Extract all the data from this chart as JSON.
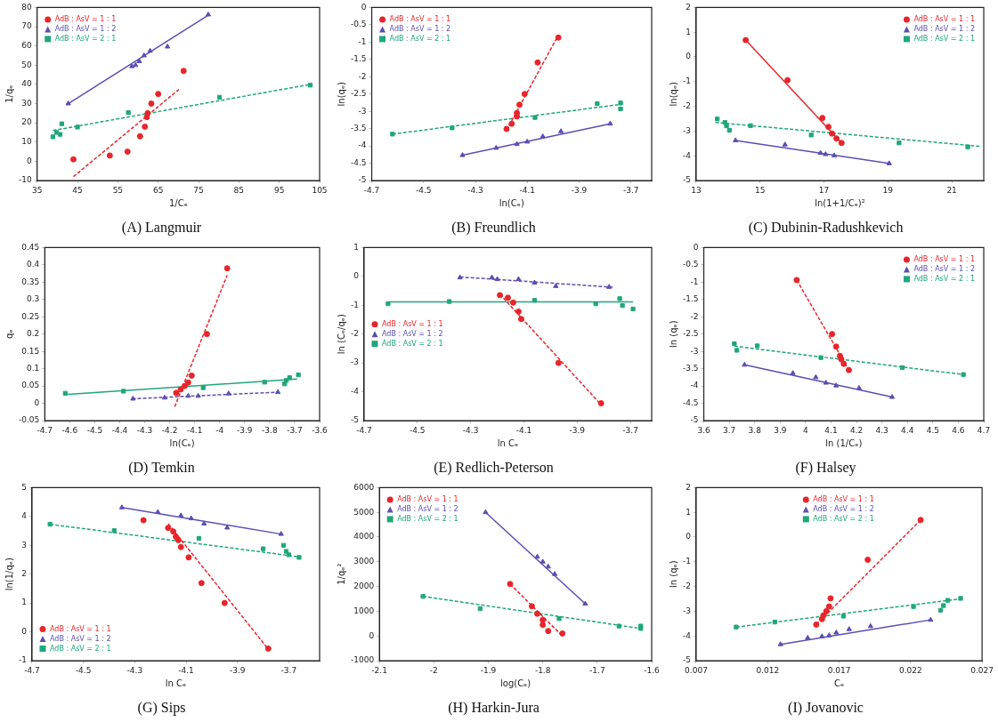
{
  "chart_data": [
    {
      "type": "scatter",
      "title": "(A) Langmuir",
      "xlabel": "1/Cₑ",
      "ylabel": "1/qₑ",
      "xlim": [
        35,
        105
      ],
      "ylim": [
        -10,
        80
      ],
      "xticks": [
        35,
        45,
        55,
        65,
        75,
        85,
        95,
        105
      ],
      "yticks": [
        -10,
        0,
        10,
        20,
        30,
        40,
        50,
        60,
        70,
        80
      ],
      "legend": "top left",
      "series": [
        {
          "name": "AdB : AsV = 1 : 1",
          "color": "#e8252b",
          "marker": "circle",
          "x": [
            44,
            53,
            57.4,
            60.5,
            61.7,
            62.2,
            62.4,
            63.3,
            65,
            71.3
          ],
          "values": [
            1,
            3,
            5,
            13,
            18,
            23,
            25,
            30,
            35,
            47
          ]
        },
        {
          "name": "AdB : AsV = 1 : 2",
          "color": "#5a4fb3",
          "marker": "triangle",
          "x": [
            42.7,
            58.5,
            59.4,
            60.3,
            61.5,
            63,
            67.3,
            77.4
          ],
          "values": [
            30,
            49.4,
            50,
            52,
            55,
            57.4,
            59.6,
            76.3
          ]
        },
        {
          "name": "AdB : AsV = 2 : 1",
          "color": "#1fa77a",
          "marker": "square",
          "x": [
            38.9,
            39.8,
            40.7,
            41.1,
            45,
            57.6,
            80.2,
            102.7
          ],
          "values": [
            12.7,
            15,
            14,
            19.5,
            17.8,
            25.3,
            33.3,
            39.6
          ]
        },
        {
          "type": "line",
          "color": "#e8252b",
          "line_style": "dashed",
          "x": [
            44,
            70.5
          ],
          "values": [
            -8,
            38
          ]
        },
        {
          "type": "line",
          "color": "#5a4fb3",
          "line_style": "solid",
          "x": [
            42.7,
            77.4
          ],
          "values": [
            30,
            76
          ]
        },
        {
          "type": "line",
          "color": "#1fa77a",
          "line_style": "dashed",
          "x": [
            38.9,
            102.7
          ],
          "values": [
            16,
            40
          ]
        }
      ]
    },
    {
      "type": "scatter",
      "title": "(B) Freundlich",
      "xlabel": "ln(Cₑ)",
      "ylabel": "ln(qₑ)",
      "xlim": [
        -4.7,
        -3.62
      ],
      "ylim": [
        -5,
        0
      ],
      "xticks": [
        -4.7,
        -4.5,
        -4.3,
        -4.1,
        -3.9,
        -3.7
      ],
      "yticks": [
        -5,
        -4.5,
        -4,
        -3.5,
        -3,
        -2.5,
        -2,
        -1.5,
        -1,
        -0.5,
        0
      ],
      "legend": "top left",
      "series": [
        {
          "name": "AdB : AsV = 1 : 1",
          "color": "#e8252b",
          "marker": "circle",
          "x": [
            -4.18,
            -4.16,
            -4.14,
            -4.14,
            -4.13,
            -4.11,
            -4.06,
            -3.98
          ],
          "values": [
            -3.51,
            -3.36,
            -3.15,
            -3.05,
            -2.81,
            -2.5,
            -1.59,
            -0.87
          ]
        },
        {
          "name": "AdB : AsV = 1 : 2",
          "color": "#5a4fb3",
          "marker": "triangle",
          "x": [
            -4.35,
            -4.22,
            -4.14,
            -4.1,
            -4.04,
            -3.97,
            -3.78
          ],
          "values": [
            -4.27,
            -4.06,
            -3.95,
            -3.88,
            -3.73,
            -3.58,
            -3.36
          ]
        },
        {
          "name": "AdB : AsV = 2 : 1",
          "color": "#1fa77a",
          "marker": "square",
          "x": [
            -4.62,
            -4.39,
            -4.07,
            -3.83,
            -3.74,
            -3.74
          ],
          "values": [
            -3.66,
            -3.48,
            -3.18,
            -2.78,
            -2.76,
            -2.93
          ]
        },
        {
          "type": "line",
          "color": "#e8252b",
          "line_style": "dashed",
          "x": [
            -4.18,
            -3.98
          ],
          "values": [
            -3.55,
            -0.8
          ]
        },
        {
          "type": "line",
          "color": "#5a4fb3",
          "line_style": "solid",
          "x": [
            -4.35,
            -3.78
          ],
          "values": [
            -4.27,
            -3.36
          ]
        },
        {
          "type": "line",
          "color": "#1fa77a",
          "line_style": "dashed",
          "x": [
            -4.62,
            -3.74
          ],
          "values": [
            -3.66,
            -2.8
          ]
        }
      ]
    },
    {
      "type": "scatter",
      "title": "(C) Dubinin-Radushkevich",
      "xlabel": "ln(1+1/Cₑ)²",
      "ylabel": "ln(qₑ)",
      "xlim": [
        13,
        22
      ],
      "ylim": [
        -5,
        2
      ],
      "xticks": [
        13,
        15,
        17,
        19,
        21
      ],
      "yticks": [
        -5,
        -4,
        -3,
        -2,
        -1,
        0,
        1,
        2
      ],
      "legend": "top right",
      "series": [
        {
          "name": "AdB : AsV = 1 : 1",
          "color": "#e8252b",
          "marker": "circle",
          "x": [
            14.55,
            15.86,
            16.95,
            17.14,
            17.25,
            17.39,
            17.55
          ],
          "values": [
            0.68,
            -0.94,
            -2.47,
            -2.83,
            -3.1,
            -3.3,
            -3.48
          ]
        },
        {
          "name": "AdB : AsV = 1 : 2",
          "color": "#5a4fb3",
          "marker": "triangle",
          "x": [
            14.23,
            15.78,
            16.89,
            17.05,
            17.32,
            19.04
          ],
          "values": [
            -3.38,
            -3.55,
            -3.89,
            -3.94,
            -3.99,
            -4.31
          ]
        },
        {
          "name": "AdB : AsV = 2 : 1",
          "color": "#1fa77a",
          "marker": "square",
          "x": [
            13.66,
            13.9,
            13.95,
            14.04,
            14.7,
            16.6,
            19.35,
            21.5
          ],
          "values": [
            -2.51,
            -2.65,
            -2.79,
            -2.97,
            -2.78,
            -3.16,
            -3.48,
            -3.64
          ]
        },
        {
          "type": "line",
          "color": "#e8252b",
          "line_style": "solid",
          "x": [
            14.55,
            17.55
          ],
          "values": [
            0.68,
            -3.48
          ]
        },
        {
          "type": "line",
          "color": "#5a4fb3",
          "line_style": "solid",
          "x": [
            14.23,
            19.04
          ],
          "values": [
            -3.38,
            -4.31
          ]
        },
        {
          "type": "line",
          "color": "#1fa77a",
          "line_style": "dashed",
          "x": [
            13.6,
            21.9
          ],
          "values": [
            -2.65,
            -3.62
          ]
        }
      ]
    },
    {
      "type": "scatter",
      "title": "(D) Temkin",
      "xlabel": "ln(Cₑ)",
      "ylabel": "qₑ",
      "xlim": [
        -4.7,
        -3.6
      ],
      "ylim": [
        -0.05,
        0.45
      ],
      "xticks": [
        -4.7,
        -4.6,
        -4.5,
        -4.4,
        -4.3,
        -4.2,
        -4.1,
        -4,
        -3.9,
        -3.8,
        -3.7,
        -3.6
      ],
      "yticks": [
        -0.05,
        0,
        0.05,
        0.1,
        0.15,
        0.2,
        0.25,
        0.3,
        0.35,
        0.4,
        0.45
      ],
      "series": [
        {
          "color": "#e8252b",
          "marker": "circle",
          "x": [
            -4.174,
            -4.156,
            -4.14,
            -4.126,
            -4.112,
            -4.051,
            -3.97
          ],
          "values": [
            0.03,
            0.04,
            0.05,
            0.06,
            0.08,
            0.2,
            0.39
          ]
        },
        {
          "color": "#5a4fb3",
          "marker": "triangle",
          "x": [
            -4.347,
            -4.22,
            -4.126,
            -4.086,
            -3.964,
            -3.767
          ],
          "values": [
            0.013,
            0.016,
            0.021,
            0.021,
            0.028,
            0.032
          ]
        },
        {
          "color": "#1fa77a",
          "marker": "square",
          "x": [
            -4.618,
            -4.385,
            -4.066,
            -3.82,
            -3.74,
            -3.733,
            -3.72,
            -3.685
          ],
          "values": [
            0.029,
            0.035,
            0.045,
            0.061,
            0.056,
            0.066,
            0.074,
            0.082
          ]
        },
        {
          "type": "line",
          "color": "#e8252b",
          "line_style": "dashed",
          "x": [
            -4.18,
            -3.97
          ],
          "values": [
            -0.01,
            0.37
          ]
        },
        {
          "type": "line",
          "color": "#5a4fb3",
          "line_style": "dashed",
          "x": [
            -4.35,
            -3.77
          ],
          "values": [
            0.013,
            0.032
          ]
        },
        {
          "type": "line",
          "color": "#1fa77a",
          "line_style": "solid",
          "x": [
            -4.62,
            -3.69
          ],
          "values": [
            0.025,
            0.07
          ]
        }
      ]
    },
    {
      "type": "scatter",
      "title": "(E) Redlich-Peterson",
      "xlabel": "ln Cₑ",
      "ylabel": "ln (Cₑ/qₑ)",
      "xlim": [
        -4.7,
        -3.62
      ],
      "ylim": [
        -5,
        1
      ],
      "xticks": [
        -4.7,
        -4.5,
        -4.3,
        -4.1,
        -3.9,
        -3.7
      ],
      "yticks": [
        -5,
        -4,
        -3,
        -2,
        -1,
        0,
        1
      ],
      "legend": "left",
      "series": [
        {
          "name": "AdB : AsV = 1 : 1",
          "color": "#e8252b",
          "marker": "circle",
          "x": [
            -4.19,
            -4.16,
            -4.14,
            -4.12,
            -4.11,
            -3.97,
            -3.81
          ],
          "values": [
            -0.65,
            -0.74,
            -0.91,
            -1.22,
            -1.48,
            -3,
            -4.4
          ]
        },
        {
          "name": "AdB : AsV = 1 : 2",
          "color": "#5a4fb3",
          "marker": "triangle",
          "x": [
            -4.34,
            -4.22,
            -4.2,
            -4.12,
            -4.06,
            -3.98,
            -3.78
          ],
          "values": [
            -0.04,
            -0.04,
            -0.1,
            -0.1,
            -0.22,
            -0.34,
            -0.37
          ]
        },
        {
          "name": "AdB : AsV = 2 : 1",
          "color": "#1fa77a",
          "marker": "square",
          "x": [
            -4.61,
            -4.38,
            -4.06,
            -3.83,
            -3.74,
            -3.73,
            -3.69
          ],
          "values": [
            -0.95,
            -0.87,
            -0.83,
            -0.95,
            -0.77,
            -1.01,
            -1.13
          ]
        },
        {
          "type": "line",
          "color": "#e8252b",
          "line_style": "dashed",
          "x": [
            -4.19,
            -3.81
          ],
          "values": [
            -0.62,
            -4.45
          ]
        },
        {
          "type": "line",
          "color": "#5a4fb3",
          "line_style": "dashed",
          "x": [
            -4.34,
            -3.76
          ],
          "values": [
            -0.02,
            -0.38
          ]
        },
        {
          "type": "line",
          "color": "#1fa77a",
          "line_style": "solid",
          "x": [
            -4.61,
            -3.69
          ],
          "values": [
            -0.88,
            -0.88
          ]
        }
      ]
    },
    {
      "type": "scatter",
      "title": "(F) Halsey",
      "xlabel": "ln (1/Cₑ)",
      "ylabel": "ln (qₑ)",
      "xlim": [
        3.6,
        4.7
      ],
      "ylim": [
        -5,
        0
      ],
      "xticks": [
        3.6,
        3.7,
        3.8,
        3.9,
        4,
        4.1,
        4.2,
        4.3,
        4.4,
        4.5,
        4.6,
        4.7
      ],
      "yticks": [
        -5,
        -4.5,
        -4,
        -3.5,
        -3,
        -2.5,
        -2,
        -1.5,
        -1,
        -0.5,
        0
      ],
      "legend": "top right",
      "series": [
        {
          "name": "AdB : AsV = 1 : 1",
          "color": "#e8252b",
          "marker": "circle",
          "x": [
            3.965,
            4.104,
            4.12,
            4.135,
            4.14,
            4.15,
            4.17
          ],
          "values": [
            -0.94,
            -2.5,
            -2.86,
            -3.13,
            -3.23,
            -3.36,
            -3.54
          ]
        },
        {
          "name": "AdB : AsV = 1 : 2",
          "color": "#5a4fb3",
          "marker": "triangle",
          "x": [
            3.76,
            3.95,
            4.04,
            4.08,
            4.12,
            4.21,
            4.34
          ],
          "values": [
            -3.39,
            -3.63,
            -3.75,
            -3.91,
            -3.99,
            -4.06,
            -4.32
          ]
        },
        {
          "name": "AdB : AsV = 2 : 1",
          "color": "#1fa77a",
          "marker": "square",
          "x": [
            3.72,
            3.73,
            3.81,
            4.06,
            4.38,
            4.62
          ],
          "values": [
            -2.78,
            -2.97,
            -2.84,
            -3.18,
            -3.47,
            -3.67
          ]
        },
        {
          "type": "line",
          "color": "#e8252b",
          "line_style": "dashed",
          "x": [
            3.965,
            4.17
          ],
          "values": [
            -0.94,
            -3.54
          ]
        },
        {
          "type": "line",
          "color": "#5a4fb3",
          "line_style": "solid",
          "x": [
            3.76,
            4.34
          ],
          "values": [
            -3.39,
            -4.32
          ]
        },
        {
          "type": "line",
          "color": "#1fa77a",
          "line_style": "dashed",
          "x": [
            3.72,
            4.62
          ],
          "values": [
            -2.85,
            -3.67
          ]
        }
      ]
    },
    {
      "type": "scatter",
      "title": "(G) Sips",
      "xlabel": "ln Cₑ",
      "ylabel": "ln(1/qₑ)",
      "xlim": [
        -4.7,
        -3.58
      ],
      "ylim": [
        -1,
        5
      ],
      "xticks": [
        -4.7,
        -4.5,
        -4.3,
        -4.1,
        -3.9,
        -3.7
      ],
      "yticks": [
        -1,
        0,
        1,
        2,
        3,
        4,
        5
      ],
      "legend": "bottom left",
      "series": [
        {
          "name": "AdB : AsV = 1 : 1",
          "color": "#e8252b",
          "marker": "circle",
          "x": [
            -4.266,
            -4.17,
            -4.15,
            -4.14,
            -4.13,
            -4.12,
            -4.09,
            -4.04,
            -3.95,
            -3.78
          ],
          "values": [
            3.87,
            3.6,
            3.48,
            3.3,
            3.18,
            2.94,
            2.58,
            1.69,
            1,
            -0.58
          ]
        },
        {
          "name": "AdB : AsV = 1 : 2",
          "color": "#5a4fb3",
          "marker": "triangle",
          "x": [
            -4.35,
            -4.21,
            -4.12,
            -4.08,
            -4.03,
            -3.94,
            -3.73
          ],
          "values": [
            4.31,
            4.15,
            4.03,
            3.93,
            3.75,
            3.61,
            3.39
          ]
        },
        {
          "name": "AdB : AsV = 2 : 1",
          "color": "#1fa77a",
          "marker": "square",
          "x": [
            -4.63,
            -4.38,
            -4.05,
            -3.8,
            -3.72,
            -3.71,
            -3.7,
            -3.66
          ],
          "values": [
            3.73,
            3.51,
            3.24,
            2.88,
            3,
            2.79,
            2.67,
            2.58
          ]
        },
        {
          "type": "line",
          "color": "#e8252b",
          "line_style": "dashed",
          "x": [
            -4.17,
            -3.78
          ],
          "values": [
            3.75,
            -0.6
          ]
        },
        {
          "type": "line",
          "color": "#5a4fb3",
          "line_style": "solid",
          "x": [
            -4.35,
            -3.73
          ],
          "values": [
            4.31,
            3.39
          ]
        },
        {
          "type": "line",
          "color": "#1fa77a",
          "line_style": "dashed",
          "x": [
            -4.63,
            -3.66
          ],
          "values": [
            3.73,
            2.6
          ]
        }
      ]
    },
    {
      "type": "scatter",
      "title": "(H) Harkin-Jura",
      "xlabel": "log(Cₑ)",
      "ylabel": "1/qₑ²",
      "xlim": [
        -2.1,
        -1.6
      ],
      "ylim": [
        -1000,
        6000
      ],
      "xticks": [
        -2.1,
        -2,
        -1.9,
        -1.8,
        -1.7,
        -1.6
      ],
      "yticks": [
        -1000,
        0,
        1000,
        2000,
        3000,
        4000,
        5000,
        6000
      ],
      "legend": "top left",
      "series": [
        {
          "name": "AdB : AsV = 1 : 1",
          "color": "#e8252b",
          "marker": "circle",
          "x": [
            -1.86,
            -1.82,
            -1.81,
            -1.8,
            -1.8,
            -1.79,
            -1.764
          ],
          "values": [
            2100,
            1200,
            900,
            650,
            450,
            200,
            100
          ]
        },
        {
          "name": "AdB : AsV = 1 : 2",
          "color": "#5a4fb3",
          "marker": "triangle",
          "x": [
            -1.905,
            -1.81,
            -1.8,
            -1.79,
            -1.778,
            -1.722
          ],
          "values": [
            5000,
            3200,
            3000,
            2800,
            2500,
            1300
          ]
        },
        {
          "name": "AdB : AsV = 2 : 1",
          "color": "#1fa77a",
          "marker": "square",
          "x": [
            -2.02,
            -1.915,
            -1.77,
            -1.66,
            -1.62,
            -1.62
          ],
          "values": [
            1600,
            1100,
            700,
            400,
            400,
            300
          ]
        },
        {
          "type": "line",
          "color": "#e8252b",
          "line_style": "dashed",
          "x": [
            -1.86,
            -1.764
          ],
          "values": [
            2100,
            0
          ]
        },
        {
          "type": "line",
          "color": "#5a4fb3",
          "line_style": "solid",
          "x": [
            -1.905,
            -1.722
          ],
          "values": [
            5000,
            1300
          ]
        },
        {
          "type": "line",
          "color": "#1fa77a",
          "line_style": "dashed",
          "x": [
            -2.02,
            -1.62
          ],
          "values": [
            1600,
            300
          ]
        }
      ]
    },
    {
      "type": "scatter",
      "title": "(I) Jovanovic",
      "xlabel": "Cₑ",
      "ylabel": "ln (qₑ)",
      "xlim": [
        0.007,
        0.027
      ],
      "ylim": [
        -5,
        2
      ],
      "xticks": [
        0.007,
        0.012,
        0.017,
        0.022,
        0.027
      ],
      "yticks": [
        -5,
        -4,
        -3,
        -2,
        -1,
        0,
        1,
        2
      ],
      "legend": "top",
      "series": [
        {
          "name": "AdB : AsV = 1 : 1",
          "color": "#e8252b",
          "marker": "circle",
          "x": [
            0.0154,
            0.0158,
            0.0159,
            0.0161,
            0.0163,
            0.0164,
            0.019,
            0.0227
          ],
          "values": [
            -3.54,
            -3.32,
            -3.17,
            -3,
            -2.81,
            -2.48,
            -0.92,
            0.69
          ]
        },
        {
          "name": "AdB : AsV = 1 : 2",
          "color": "#5a4fb3",
          "marker": "triangle",
          "x": [
            0.0129,
            0.0148,
            0.0158,
            0.0163,
            0.0168,
            0.0177,
            0.0192,
            0.0234
          ],
          "values": [
            -4.34,
            -4.08,
            -4.02,
            -3.98,
            -3.87,
            -3.73,
            -3.61,
            -3.35
          ]
        },
        {
          "name": "AdB : AsV = 2 : 1",
          "color": "#1fa77a",
          "marker": "square",
          "x": [
            0.0098,
            0.0125,
            0.0173,
            0.0222,
            0.0241,
            0.0243,
            0.0246,
            0.0255
          ],
          "values": [
            -3.64,
            -3.44,
            -3.2,
            -2.81,
            -2.96,
            -2.77,
            -2.56,
            -2.48
          ]
        },
        {
          "type": "line",
          "color": "#e8252b",
          "line_style": "dashed",
          "x": [
            0.0154,
            0.0227
          ],
          "values": [
            -3.54,
            0.69
          ]
        },
        {
          "type": "line",
          "color": "#5a4fb3",
          "line_style": "solid",
          "x": [
            0.0129,
            0.0234
          ],
          "values": [
            -4.34,
            -3.35
          ]
        },
        {
          "type": "line",
          "color": "#1fa77a",
          "line_style": "dashed",
          "x": [
            0.0098,
            0.0255
          ],
          "values": [
            -3.64,
            -2.5
          ]
        }
      ]
    }
  ]
}
